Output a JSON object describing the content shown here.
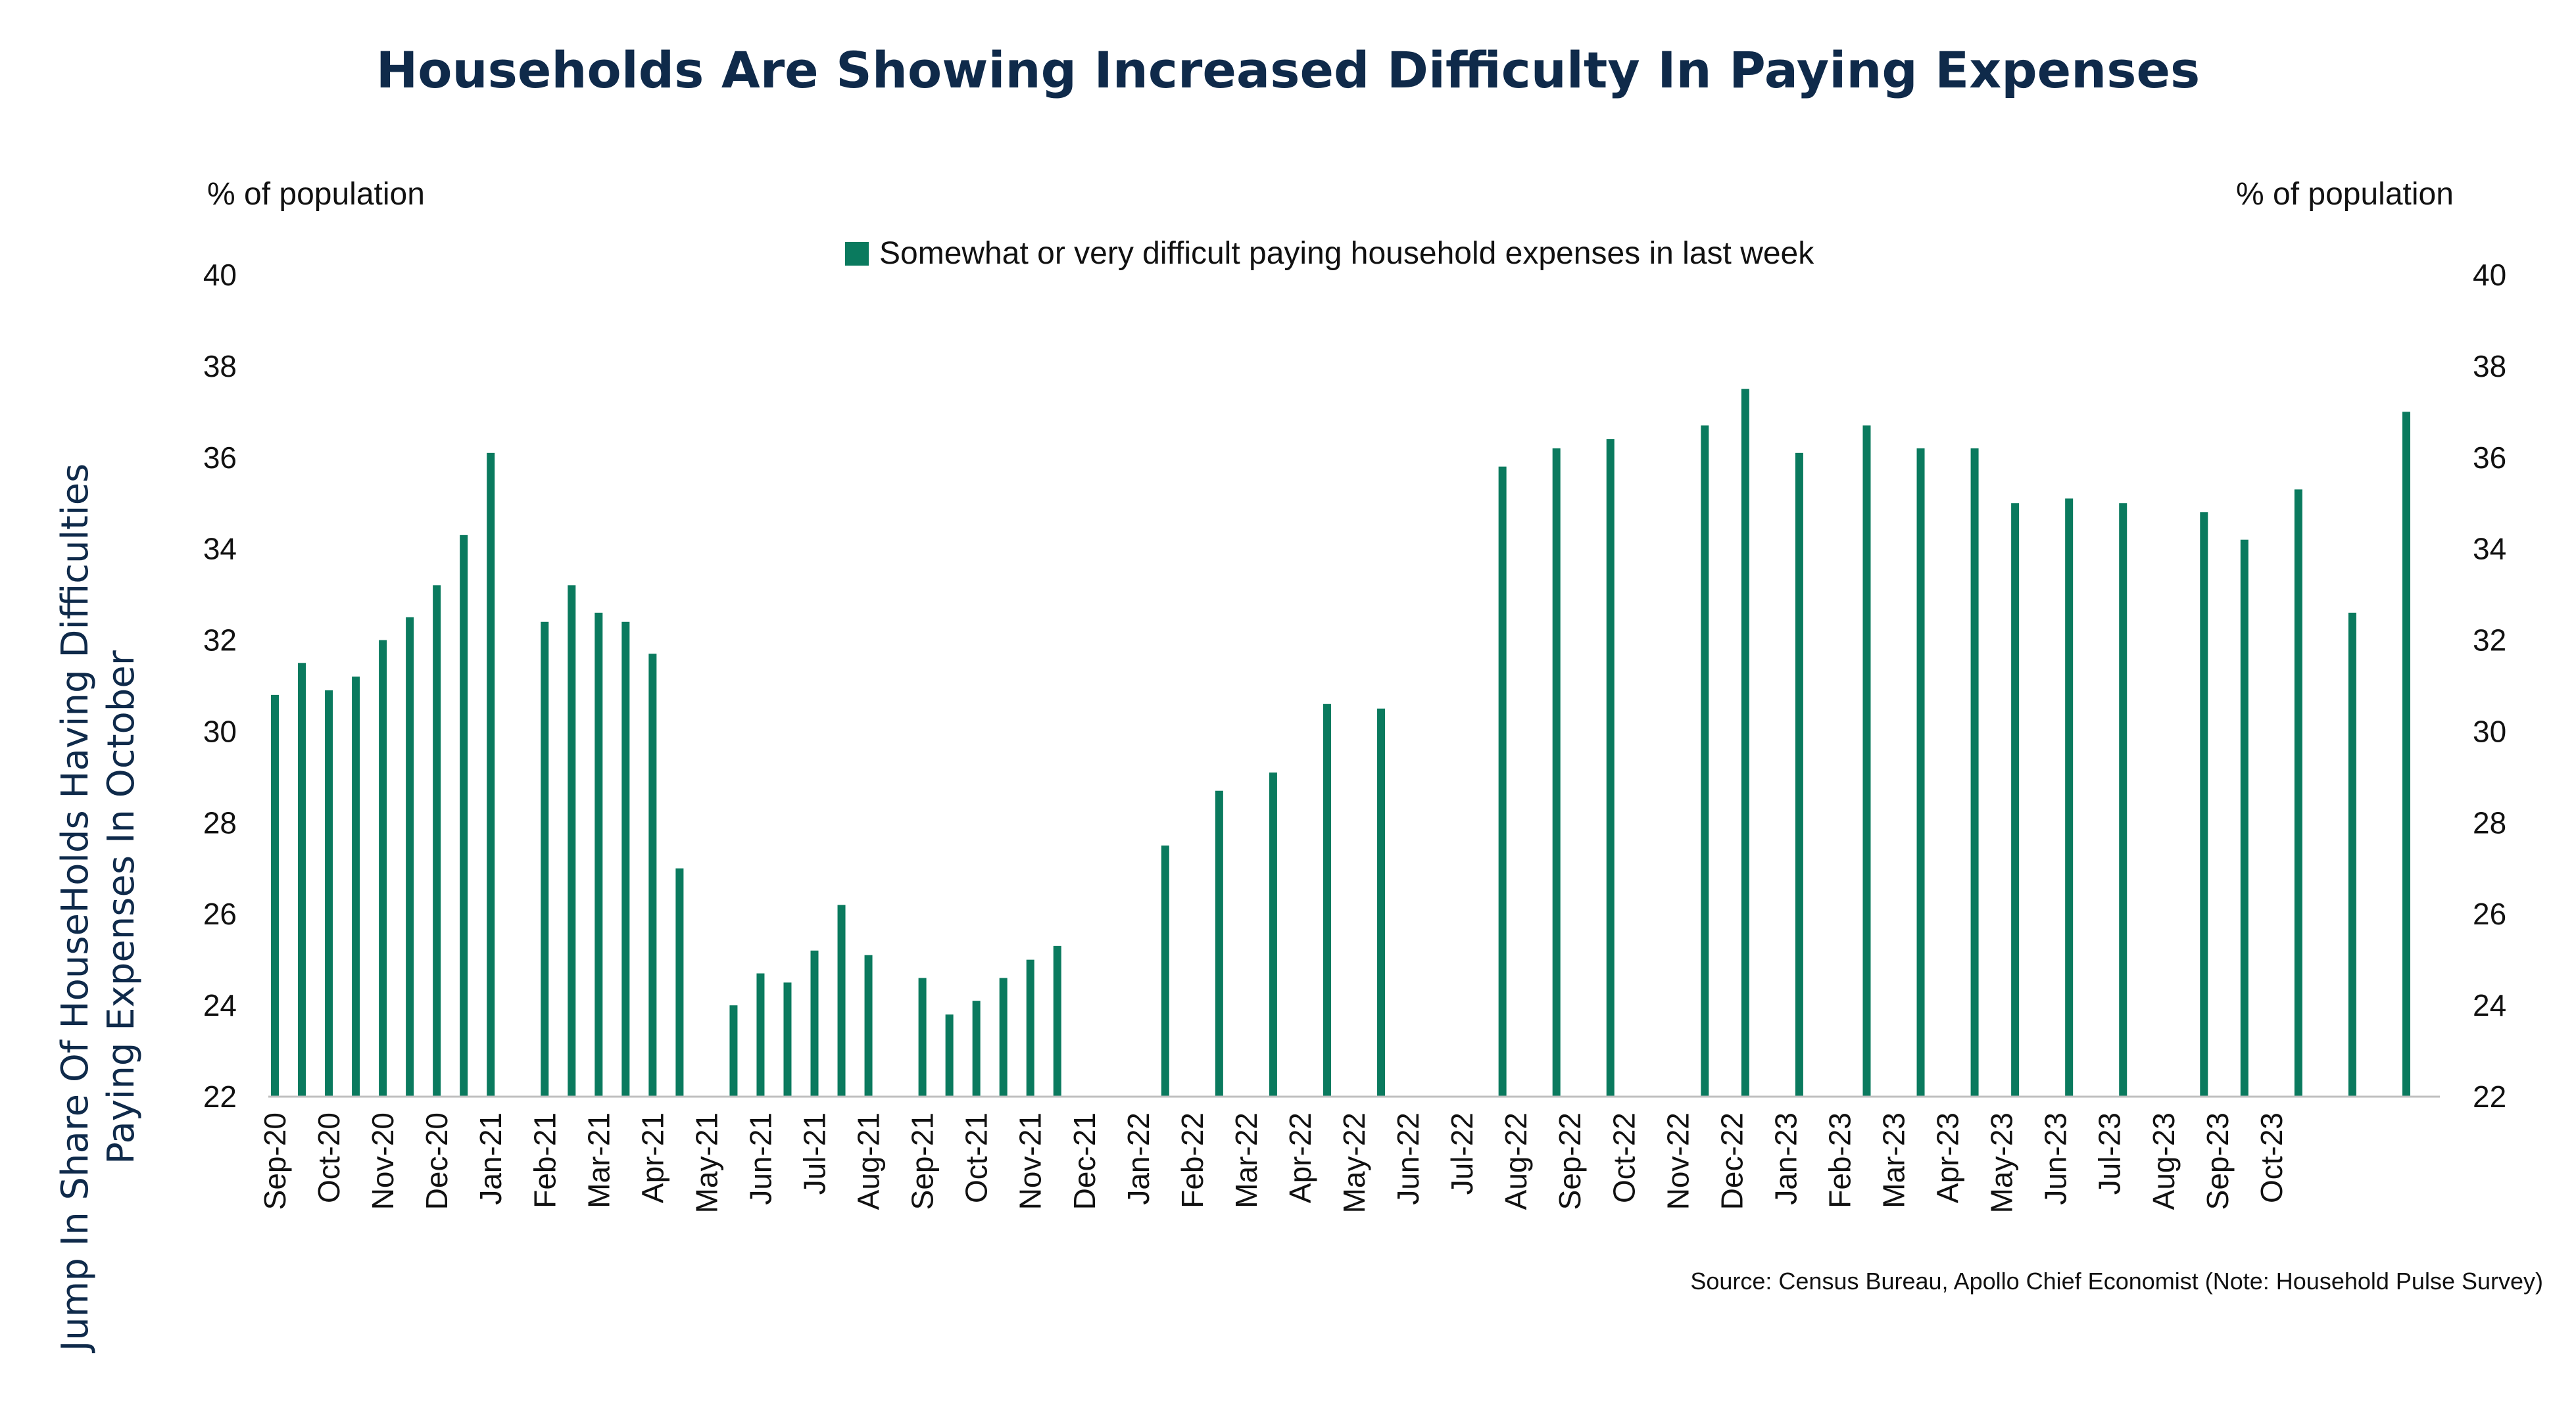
{
  "page": {
    "title": "Households Are Showing Increased Difficulty In Paying Expenses",
    "side_label_line1": "Jump In Share Of HouseHolds Having Difficulties",
    "side_label_line2": "Paying Expenses In October",
    "source": "Source: Census Bureau, Apollo Chief Economist (Note: Household Pulse Survey)"
  },
  "chart_data": {
    "type": "bar",
    "title": "Households Are Showing Increased Difficulty In Paying Expenses",
    "ylabel_left": "% of population",
    "ylabel_right": "% of population",
    "ylim": [
      22,
      40
    ],
    "yticks": [
      22,
      24,
      26,
      28,
      30,
      32,
      34,
      36,
      38,
      40
    ],
    "x_tick_labels": [
      "Sep-20",
      "Oct-20",
      "Nov-20",
      "Dec-20",
      "Jan-21",
      "Feb-21",
      "Mar-21",
      "Apr-21",
      "May-21",
      "Jun-21",
      "Jul-21",
      "Aug-21",
      "Sep-21",
      "Oct-21",
      "Nov-21",
      "Dec-21",
      "Jan-22",
      "Feb-22",
      "Mar-22",
      "Apr-22",
      "May-22",
      "Jun-22",
      "Jul-22",
      "Aug-22",
      "Sep-22",
      "Oct-22",
      "Nov-22",
      "Dec-22",
      "Jan-23",
      "Feb-23",
      "Mar-23",
      "Apr-23",
      "May-23",
      "Jun-23",
      "Jul-23",
      "Aug-23",
      "Sep-23",
      "Oct-23"
    ],
    "legend_position": "top-center",
    "color": "#0a7a5e",
    "series": [
      {
        "name": "Somewhat or very difficult paying household expenses in last week",
        "points": [
          {
            "x": 0.0,
            "y": 30.8
          },
          {
            "x": 0.5,
            "y": 31.5
          },
          {
            "x": 1.0,
            "y": 30.9
          },
          {
            "x": 1.5,
            "y": 31.2
          },
          {
            "x": 2.0,
            "y": 32.0
          },
          {
            "x": 2.5,
            "y": 32.5
          },
          {
            "x": 3.0,
            "y": 33.2
          },
          {
            "x": 3.5,
            "y": 34.3
          },
          {
            "x": 4.0,
            "y": 36.1
          },
          {
            "x": 5.0,
            "y": 32.4
          },
          {
            "x": 5.5,
            "y": 33.2
          },
          {
            "x": 6.0,
            "y": 32.6
          },
          {
            "x": 6.5,
            "y": 32.4
          },
          {
            "x": 7.0,
            "y": 31.7
          },
          {
            "x": 7.5,
            "y": 27.0
          },
          {
            "x": 8.5,
            "y": 24.0
          },
          {
            "x": 9.0,
            "y": 24.7
          },
          {
            "x": 9.5,
            "y": 24.5
          },
          {
            "x": 10.0,
            "y": 25.2
          },
          {
            "x": 10.5,
            "y": 26.2
          },
          {
            "x": 11.0,
            "y": 25.1
          },
          {
            "x": 12.0,
            "y": 24.6
          },
          {
            "x": 12.5,
            "y": 23.8
          },
          {
            "x": 13.0,
            "y": 24.1
          },
          {
            "x": 13.5,
            "y": 24.6
          },
          {
            "x": 14.0,
            "y": 25.0
          },
          {
            "x": 14.5,
            "y": 25.3
          },
          {
            "x": 16.5,
            "y": 27.5
          },
          {
            "x": 17.5,
            "y": 28.7
          },
          {
            "x": 18.5,
            "y": 29.1
          },
          {
            "x": 19.5,
            "y": 30.6
          },
          {
            "x": 20.5,
            "y": 30.5
          },
          {
            "x": 22.75,
            "y": 35.8
          },
          {
            "x": 23.75,
            "y": 36.2
          },
          {
            "x": 24.75,
            "y": 36.4
          },
          {
            "x": 26.5,
            "y": 36.7
          },
          {
            "x": 27.25,
            "y": 37.5
          },
          {
            "x": 28.25,
            "y": 36.1
          },
          {
            "x": 29.5,
            "y": 36.7
          },
          {
            "x": 30.5,
            "y": 36.2
          },
          {
            "x": 31.5,
            "y": 36.2
          },
          {
            "x": 32.25,
            "y": 35.0
          },
          {
            "x": 33.25,
            "y": 35.1
          },
          {
            "x": 34.25,
            "y": 35.0
          },
          {
            "x": 35.75,
            "y": 34.8
          },
          {
            "x": 36.5,
            "y": 34.2
          },
          {
            "x": 37.5,
            "y": 35.3
          },
          {
            "x": 38.5,
            "y": 32.6
          },
          {
            "x": 39.5,
            "y": 37.0
          }
        ]
      }
    ]
  }
}
